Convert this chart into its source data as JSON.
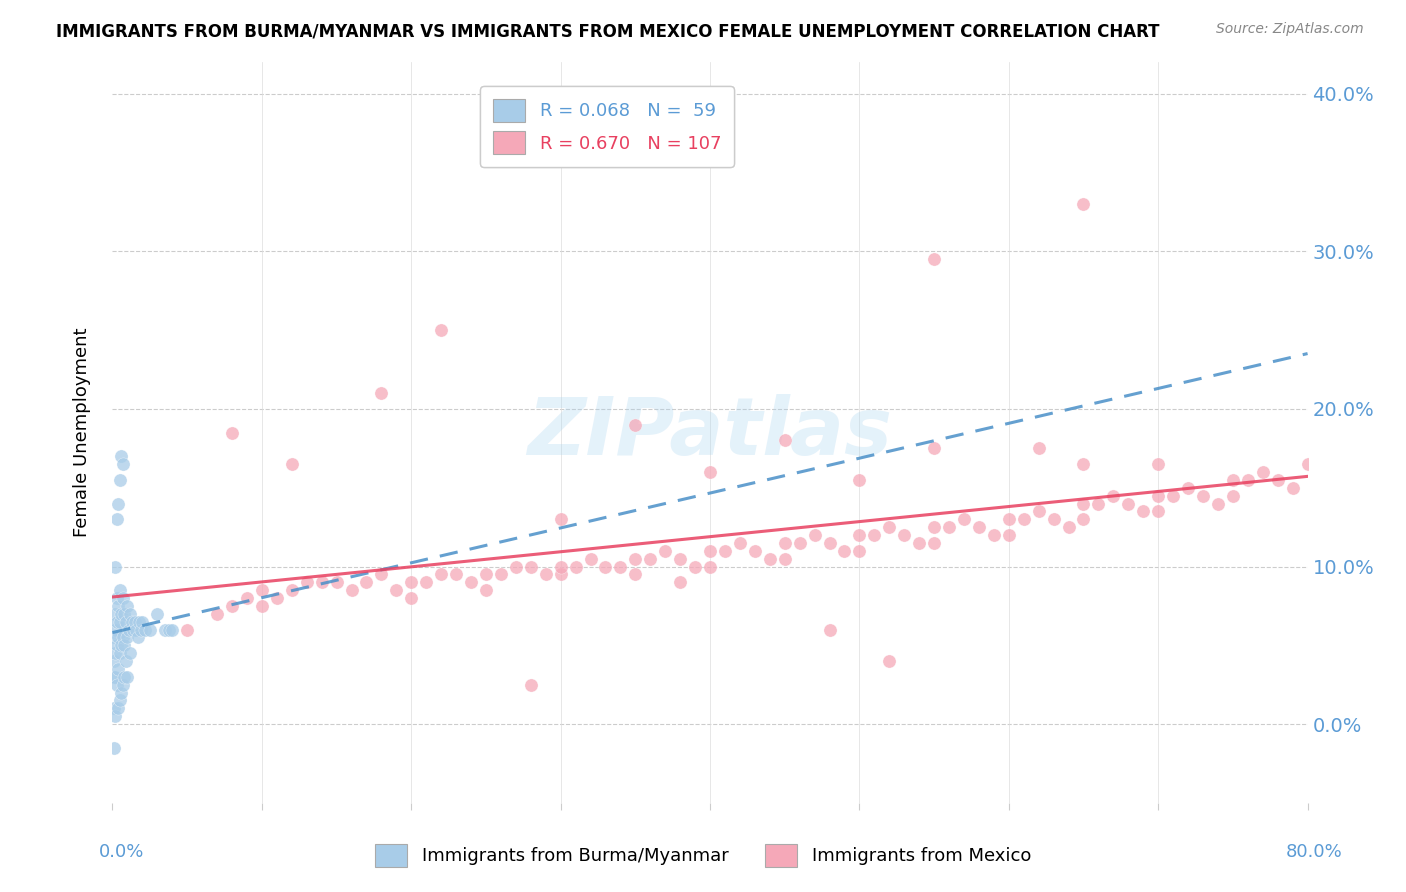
{
  "title": "IMMIGRANTS FROM BURMA/MYANMAR VS IMMIGRANTS FROM MEXICO FEMALE UNEMPLOYMENT CORRELATION CHART",
  "source": "Source: ZipAtlas.com",
  "ylabel": "Female Unemployment",
  "xlim": [
    0.0,
    0.8
  ],
  "ylim": [
    -0.05,
    0.42
  ],
  "ytick_vals": [
    0.0,
    0.1,
    0.2,
    0.3,
    0.4
  ],
  "ytick_labels": [
    "0.0%",
    "10.0%",
    "20.0%",
    "30.0%",
    "40.0%"
  ],
  "color_burma": "#a8cce8",
  "color_mexico": "#f5a8b8",
  "color_burma_line": "#4a90c8",
  "color_mexico_line": "#e8406080",
  "background": "#ffffff",
  "legend_label1": "R = 0.068   N =  59",
  "legend_label2": "R = 0.670   N = 107",
  "bottom_label1": "Immigrants from Burma/Myanmar",
  "bottom_label2": "Immigrants from Mexico",
  "burma_x": [
    0.001,
    0.001,
    0.001,
    0.001,
    0.002,
    0.002,
    0.002,
    0.002,
    0.002,
    0.003,
    0.003,
    0.003,
    0.003,
    0.004,
    0.004,
    0.004,
    0.004,
    0.005,
    0.005,
    0.005,
    0.005,
    0.006,
    0.006,
    0.006,
    0.007,
    0.007,
    0.007,
    0.008,
    0.008,
    0.008,
    0.009,
    0.009,
    0.01,
    0.01,
    0.01,
    0.011,
    0.012,
    0.012,
    0.013,
    0.014,
    0.015,
    0.016,
    0.017,
    0.018,
    0.019,
    0.02,
    0.022,
    0.025,
    0.03,
    0.035,
    0.038,
    0.04,
    0.006,
    0.007,
    0.005,
    0.004,
    0.003,
    0.002,
    0.001
  ],
  "burma_y": [
    0.055,
    0.04,
    0.03,
    0.01,
    0.07,
    0.06,
    0.045,
    0.03,
    0.005,
    0.08,
    0.065,
    0.05,
    0.025,
    0.075,
    0.055,
    0.035,
    0.01,
    0.085,
    0.065,
    0.045,
    0.015,
    0.07,
    0.05,
    0.02,
    0.08,
    0.055,
    0.025,
    0.07,
    0.05,
    0.03,
    0.065,
    0.04,
    0.075,
    0.055,
    0.03,
    0.06,
    0.07,
    0.045,
    0.065,
    0.06,
    0.065,
    0.06,
    0.055,
    0.065,
    0.06,
    0.065,
    0.06,
    0.06,
    0.07,
    0.06,
    0.06,
    0.06,
    0.17,
    0.165,
    0.155,
    0.14,
    0.13,
    0.1,
    -0.015
  ],
  "mexico_x": [
    0.05,
    0.07,
    0.08,
    0.09,
    0.1,
    0.1,
    0.11,
    0.12,
    0.13,
    0.14,
    0.15,
    0.16,
    0.17,
    0.18,
    0.19,
    0.2,
    0.2,
    0.21,
    0.22,
    0.23,
    0.24,
    0.25,
    0.25,
    0.26,
    0.27,
    0.28,
    0.29,
    0.3,
    0.3,
    0.31,
    0.32,
    0.33,
    0.34,
    0.35,
    0.35,
    0.36,
    0.37,
    0.38,
    0.39,
    0.4,
    0.4,
    0.41,
    0.42,
    0.43,
    0.44,
    0.45,
    0.45,
    0.46,
    0.47,
    0.48,
    0.49,
    0.5,
    0.5,
    0.51,
    0.52,
    0.53,
    0.54,
    0.55,
    0.55,
    0.56,
    0.57,
    0.58,
    0.59,
    0.6,
    0.6,
    0.61,
    0.62,
    0.63,
    0.64,
    0.65,
    0.65,
    0.66,
    0.67,
    0.68,
    0.69,
    0.7,
    0.7,
    0.71,
    0.72,
    0.73,
    0.74,
    0.75,
    0.75,
    0.76,
    0.77,
    0.78,
    0.79,
    0.8,
    0.35,
    0.45,
    0.55,
    0.62,
    0.5,
    0.4,
    0.3,
    0.65,
    0.7,
    0.52,
    0.48,
    0.38,
    0.28,
    0.22,
    0.18,
    0.12,
    0.08,
    0.55,
    0.65
  ],
  "mexico_y": [
    0.06,
    0.07,
    0.075,
    0.08,
    0.085,
    0.075,
    0.08,
    0.085,
    0.09,
    0.09,
    0.09,
    0.085,
    0.09,
    0.095,
    0.085,
    0.09,
    0.08,
    0.09,
    0.095,
    0.095,
    0.09,
    0.095,
    0.085,
    0.095,
    0.1,
    0.1,
    0.095,
    0.095,
    0.1,
    0.1,
    0.105,
    0.1,
    0.1,
    0.105,
    0.095,
    0.105,
    0.11,
    0.105,
    0.1,
    0.11,
    0.1,
    0.11,
    0.115,
    0.11,
    0.105,
    0.115,
    0.105,
    0.115,
    0.12,
    0.115,
    0.11,
    0.12,
    0.11,
    0.12,
    0.125,
    0.12,
    0.115,
    0.125,
    0.115,
    0.125,
    0.13,
    0.125,
    0.12,
    0.13,
    0.12,
    0.13,
    0.135,
    0.13,
    0.125,
    0.14,
    0.13,
    0.14,
    0.145,
    0.14,
    0.135,
    0.145,
    0.135,
    0.145,
    0.15,
    0.145,
    0.14,
    0.155,
    0.145,
    0.155,
    0.16,
    0.155,
    0.15,
    0.165,
    0.19,
    0.18,
    0.175,
    0.175,
    0.155,
    0.16,
    0.13,
    0.165,
    0.165,
    0.04,
    0.06,
    0.09,
    0.025,
    0.25,
    0.21,
    0.165,
    0.185,
    0.295,
    0.33
  ]
}
